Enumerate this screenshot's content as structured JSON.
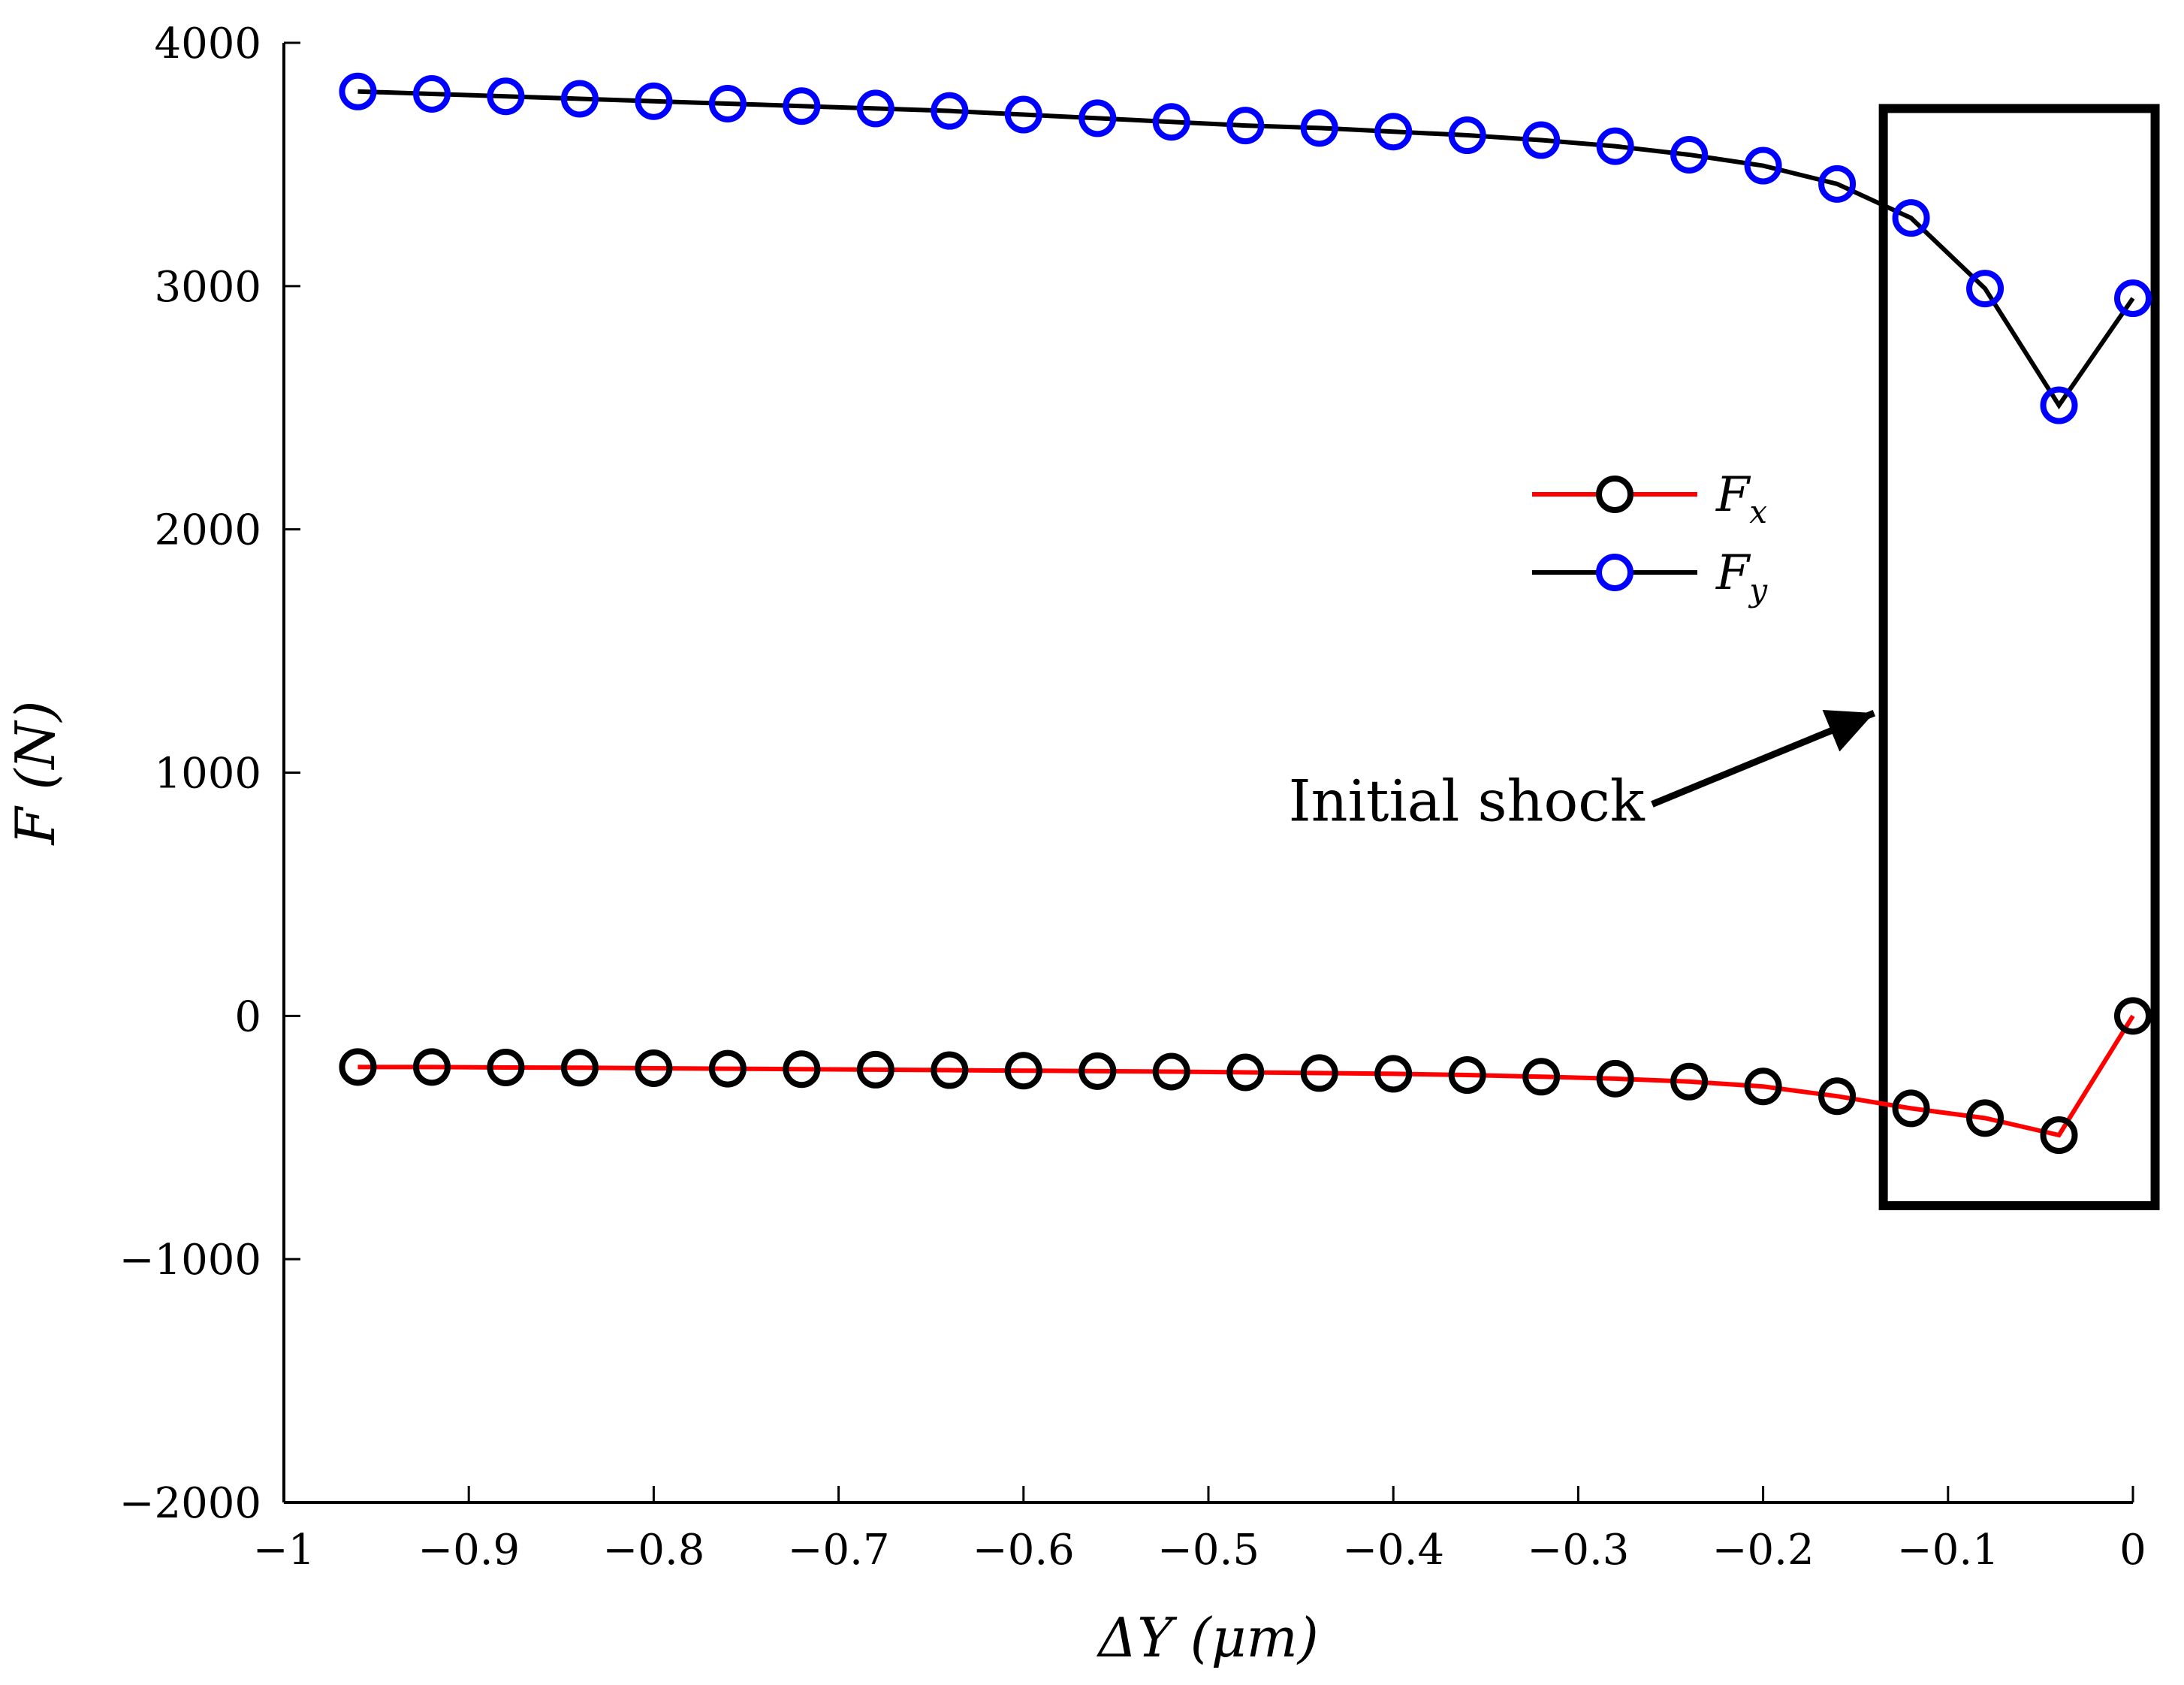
{
  "chart_data": {
    "type": "line",
    "title": "",
    "xlabel": "ΔY (μm)",
    "ylabel": "F (N)",
    "xlim": [
      -1,
      0
    ],
    "ylim": [
      -2000,
      4000
    ],
    "xticks": [
      -1,
      -0.9,
      -0.8,
      -0.7,
      -0.6,
      -0.5,
      -0.4,
      -0.3,
      -0.2,
      -0.1,
      0
    ],
    "xtick_labels": [
      "−1",
      "−0.9",
      "−0.8",
      "−0.7",
      "−0.6",
      "−0.5",
      "−0.4",
      "−0.3",
      "−0.2",
      "−0.1",
      "0"
    ],
    "yticks": [
      -2000,
      -1000,
      0,
      1000,
      2000,
      3000,
      4000
    ],
    "ytick_labels": [
      "−2000",
      "−1000",
      "0",
      "1000",
      "2000",
      "3000",
      "4000"
    ],
    "grid": false,
    "legend_position": "center-right",
    "x": [
      -0.96,
      -0.92,
      -0.88,
      -0.84,
      -0.8,
      -0.76,
      -0.72,
      -0.68,
      -0.64,
      -0.6,
      -0.56,
      -0.52,
      -0.48,
      -0.44,
      -0.4,
      -0.36,
      -0.32,
      -0.28,
      -0.24,
      -0.2,
      -0.16,
      -0.12,
      -0.08,
      -0.04,
      0.0
    ],
    "series": [
      {
        "name": "F",
        "name_sub": "x",
        "line_color": "#ff0000",
        "marker_color": "#000000",
        "values": [
          -210,
          -210,
          -212,
          -213,
          -215,
          -217,
          -219,
          -221,
          -223,
          -225,
          -227,
          -229,
          -232,
          -235,
          -238,
          -243,
          -250,
          -258,
          -270,
          -290,
          -330,
          -380,
          -420,
          -490,
          0
        ]
      },
      {
        "name": "F",
        "name_sub": "y",
        "line_color": "#000000",
        "marker_color": "#0000ff",
        "values": [
          3800,
          3790,
          3780,
          3770,
          3760,
          3750,
          3740,
          3730,
          3720,
          3705,
          3690,
          3675,
          3660,
          3650,
          3635,
          3620,
          3600,
          3575,
          3540,
          3495,
          3420,
          3280,
          2990,
          2510,
          2950
        ]
      }
    ],
    "annotation": {
      "text": "Initial shock",
      "box_x": [
        -0.135,
        0.012
      ],
      "box_y": [
        -780,
        3730
      ],
      "arrow_from": [
        -0.26,
        870
      ],
      "arrow_to": [
        -0.14,
        1245
      ]
    }
  }
}
